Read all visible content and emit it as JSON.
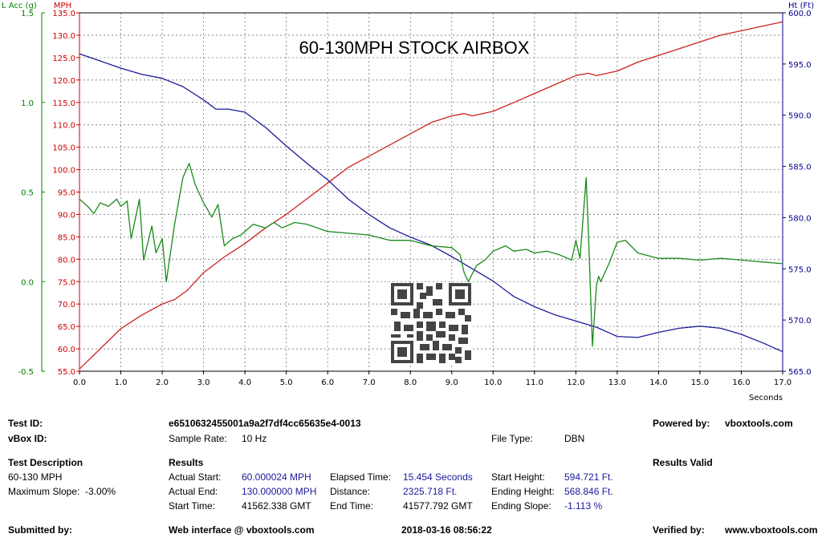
{
  "chart_data": {
    "type": "line",
    "title": "60-130MPH STOCK AIRBOX",
    "xlabel": "Seconds",
    "xlim": [
      0,
      17
    ],
    "x_ticks": [
      "0.0",
      "1.0",
      "2.0",
      "3.0",
      "4.0",
      "5.0",
      "6.0",
      "7.0",
      "8.0",
      "9.0",
      "10.0",
      "11.0",
      "12.0",
      "13.0",
      "14.0",
      "15.0",
      "16.0",
      "17.0"
    ],
    "grid": true,
    "axes": {
      "lacc": {
        "label": "L Acc (g)",
        "side": "left-outer",
        "color": "#008000",
        "range": [
          -0.5,
          1.5
        ],
        "ticks": [
          "-0.5",
          "0.0",
          "0.5",
          "1.0",
          "1.5"
        ]
      },
      "mph": {
        "label": "MPH",
        "side": "left-inner",
        "color": "#cc0000",
        "range": [
          55,
          135
        ],
        "ticks": [
          "55.0",
          "60.0",
          "65.0",
          "70.0",
          "75.0",
          "80.0",
          "85.0",
          "90.0",
          "95.0",
          "100.0",
          "105.0",
          "110.0",
          "115.0",
          "120.0",
          "125.0",
          "130.0",
          "135.0"
        ]
      },
      "ht": {
        "label": "Ht (Ft)",
        "side": "right",
        "color": "#00008b",
        "range": [
          565,
          600
        ],
        "ticks": [
          "565.0",
          "570.0",
          "575.0",
          "580.0",
          "585.0",
          "590.0",
          "595.0",
          "600.0"
        ]
      }
    },
    "series": [
      {
        "axis": "mph",
        "color": "#cc2222",
        "x": [
          0,
          0.5,
          1,
          1.5,
          2,
          2.3,
          2.6,
          3,
          3.5,
          4,
          4.5,
          5,
          5.5,
          6,
          6.5,
          7,
          7.5,
          8,
          8.5,
          9,
          9.3,
          9.5,
          10,
          10.5,
          11,
          11.5,
          12,
          12.3,
          12.5,
          13,
          13.5,
          14,
          14.5,
          15,
          15.5,
          16,
          16.5,
          17
        ],
        "y": [
          55.5,
          60,
          64.5,
          67.5,
          70,
          71,
          73,
          77,
          80.5,
          83.5,
          87,
          90,
          93.5,
          97,
          100.5,
          103,
          105.5,
          108,
          110.5,
          112,
          112.5,
          112,
          113,
          115,
          117,
          119,
          121,
          121.5,
          121,
          122,
          124,
          125.5,
          127,
          128.5,
          130,
          131,
          132,
          133
        ]
      },
      {
        "axis": "ht",
        "color": "#1a1a99",
        "x": [
          0,
          0.5,
          1,
          1.5,
          2,
          2.5,
          3,
          3.3,
          3.6,
          4,
          4.5,
          5,
          5.5,
          6,
          6.5,
          7,
          7.5,
          8,
          8.5,
          9,
          9.5,
          10,
          10.5,
          11,
          11.5,
          12,
          12.5,
          13,
          13.5,
          14,
          14.5,
          15,
          15.5,
          16,
          16.5,
          17
        ],
        "y": [
          596,
          595.3,
          594.6,
          594,
          593.6,
          592.8,
          591.5,
          590.6,
          590.6,
          590.3,
          588.8,
          587,
          585.3,
          583.7,
          581.8,
          580.3,
          579,
          578.1,
          577.3,
          576.2,
          575,
          573.8,
          572.3,
          571.3,
          570.5,
          569.9,
          569.3,
          568.4,
          568.3,
          568.8,
          569.2,
          569.4,
          569.2,
          568.6,
          567.8,
          566.9
        ]
      },
      {
        "axis": "lacc",
        "color": "#1a8a1a",
        "x": [
          0,
          0.2,
          0.35,
          0.5,
          0.7,
          0.9,
          1.0,
          1.15,
          1.25,
          1.45,
          1.55,
          1.75,
          1.85,
          2.0,
          2.1,
          2.3,
          2.5,
          2.65,
          2.8,
          3.0,
          3.2,
          3.35,
          3.5,
          3.7,
          3.9,
          4.2,
          4.5,
          4.7,
          4.9,
          5.2,
          5.5,
          6.0,
          6.5,
          7.0,
          7.5,
          8.0,
          8.5,
          9.0,
          9.2,
          9.3,
          9.4,
          9.6,
          9.8,
          10.0,
          10.3,
          10.5,
          10.8,
          11.0,
          11.3,
          11.6,
          11.9,
          12.0,
          12.1,
          12.25,
          12.3,
          12.4,
          12.5,
          12.55,
          12.6,
          12.8,
          13.0,
          13.2,
          13.5,
          14.0,
          14.5,
          15.0,
          15.5,
          16.0,
          16.5,
          17.0
        ],
        "y": [
          0.46,
          0.42,
          0.38,
          0.44,
          0.42,
          0.46,
          0.42,
          0.45,
          0.24,
          0.46,
          0.12,
          0.31,
          0.16,
          0.24,
          0.0,
          0.32,
          0.58,
          0.66,
          0.54,
          0.44,
          0.36,
          0.43,
          0.2,
          0.24,
          0.26,
          0.32,
          0.3,
          0.33,
          0.3,
          0.33,
          0.32,
          0.28,
          0.27,
          0.26,
          0.23,
          0.23,
          0.2,
          0.19,
          0.15,
          0.05,
          0.0,
          0.09,
          0.12,
          0.17,
          0.2,
          0.17,
          0.18,
          0.16,
          0.17,
          0.15,
          0.12,
          0.23,
          0.13,
          0.58,
          0.3,
          -0.36,
          -0.02,
          0.03,
          0.0,
          0.1,
          0.22,
          0.23,
          0.16,
          0.13,
          0.13,
          0.12,
          0.13,
          0.12,
          0.11,
          0.1
        ]
      }
    ]
  },
  "info": {
    "test_id_label": "Test ID:",
    "test_id_value": "e6510632455001a9a2f7df4cc65635e4-0013",
    "vbox_id_label": "vBox ID:",
    "sample_rate_label": "Sample Rate:",
    "sample_rate_value": "10 Hz",
    "file_type_label": "File Type:",
    "file_type_value": "DBN",
    "powered_by_label": "Powered by:",
    "powered_by_value": "vboxtools.com",
    "test_desc_label": "Test Description",
    "test_desc_value": "60-130 MPH",
    "max_slope": "Maximum Slope:  -3.00%",
    "results_label": "Results",
    "results_valid": "Results Valid",
    "actual_start_label": "Actual Start:",
    "actual_start_value": "60.000024 MPH",
    "actual_end_label": "Actual End:",
    "actual_end_value": "130.000000 MPH",
    "start_time_label": "Start Time:",
    "start_time_value": "41562.338 GMT",
    "elapsed_label": "Elapsed Time:",
    "elapsed_value": "15.454 Seconds",
    "distance_label": "Distance:",
    "distance_value": "2325.718 Ft.",
    "end_time_label": "End Time:",
    "end_time_value": "41577.792 GMT",
    "start_height_label": "Start Height:",
    "start_height_value": "594.721 Ft.",
    "ending_height_label": "Ending Height:",
    "ending_height_value": "568.846 Ft.",
    "ending_slope_label": "Ending Slope:",
    "ending_slope_value": "-1.113 %",
    "submitted_label": "Submitted by:",
    "web_interface": "Web interface @ vboxtools.com",
    "timestamp": "2018-03-16 08:56:22",
    "verified_label": "Verified by:",
    "verified_value": "www.vboxtools.com"
  }
}
